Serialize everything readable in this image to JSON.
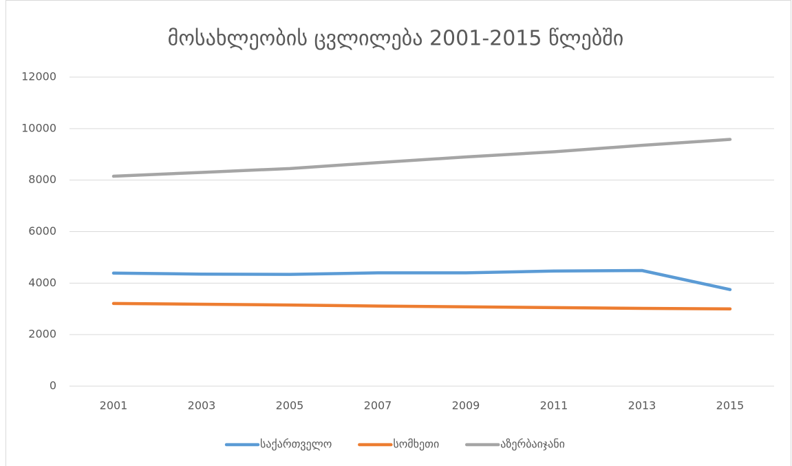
{
  "chart_data": {
    "type": "line",
    "title": "მოსახლეობის ცვლილება 2001-2015 წლებში",
    "categories": [
      "2001",
      "2003",
      "2005",
      "2007",
      "2009",
      "2011",
      "2013",
      "2015"
    ],
    "series": [
      {
        "name": "საქართველო",
        "color": "#5b9bd5",
        "values": [
          4390,
          4350,
          4340,
          4400,
          4400,
          4470,
          4490,
          3750
        ]
      },
      {
        "name": "სომხეთი",
        "color": "#ed7d31",
        "values": [
          3210,
          3180,
          3150,
          3110,
          3080,
          3050,
          3020,
          3000
        ]
      },
      {
        "name": "აზერბაიჯანი",
        "color": "#a5a5a5",
        "values": [
          8150,
          8300,
          8450,
          8680,
          8900,
          9100,
          9350,
          9580
        ]
      }
    ],
    "ylim": [
      0,
      12000
    ],
    "yticks": [
      0,
      2000,
      4000,
      6000,
      8000,
      10000,
      12000
    ],
    "grid": true,
    "legend": "bottom"
  }
}
